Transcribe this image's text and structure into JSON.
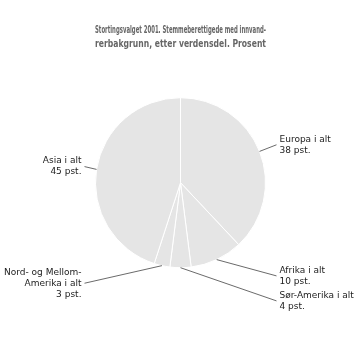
{
  "chart_data": {
    "type": "pie",
    "title": "Stortingsvalget 2001. Stemmeberettigede med innvand-\nrerbakgrunn, etter verdensdel. Prosent",
    "categories": [
      "Europa i alt\n38 pst.",
      "Afrika i alt\n10 pst.",
      "Sør-Amerika i alt\n4 pst.",
      "Nord- og Mellom-\nAmerika i alt\n3 pst.",
      "Asia i alt\n45 pst."
    ],
    "values": [
      38,
      10,
      4,
      3,
      45
    ]
  }
}
